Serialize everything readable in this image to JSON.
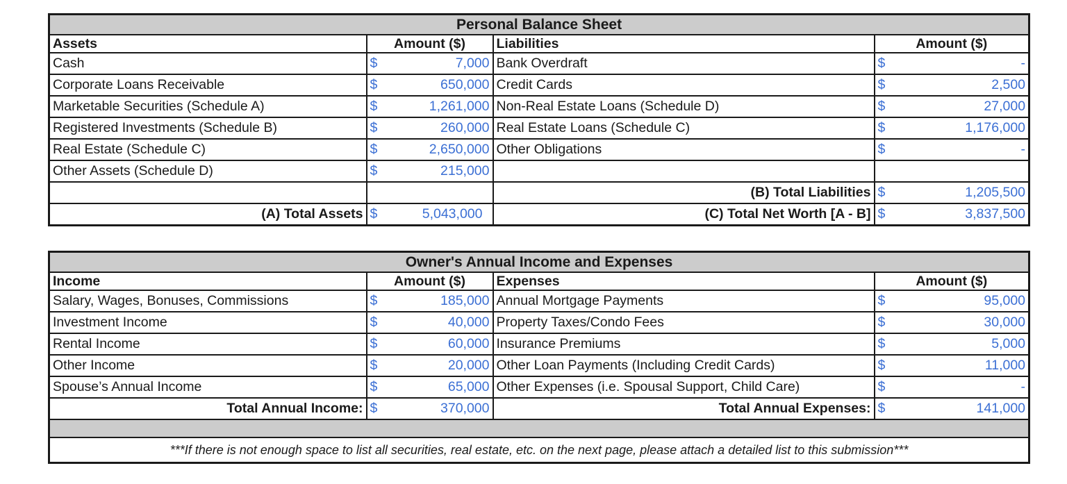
{
  "balance_sheet": {
    "title": "Personal Balance Sheet",
    "assets_header": "Assets",
    "amount_header": "Amount ($)",
    "liabilities_header": "Liabilities",
    "currency": "$",
    "rows": [
      {
        "asset": "Cash",
        "asset_amount": "7,000",
        "liability": "Bank Overdraft",
        "liability_amount": "-"
      },
      {
        "asset": "Corporate Loans Receivable",
        "asset_amount": "650,000",
        "liability": "Credit Cards",
        "liability_amount": "2,500"
      },
      {
        "asset": "Marketable Securities (Schedule A)",
        "asset_amount": "1,261,000",
        "liability": "Non-Real Estate Loans (Schedule D)",
        "liability_amount": "27,000"
      },
      {
        "asset": "Registered Investments (Schedule B)",
        "asset_amount": "260,000",
        "liability": "Real Estate Loans (Schedule C)",
        "liability_amount": "1,176,000"
      },
      {
        "asset": "Real Estate (Schedule C)",
        "asset_amount": "2,650,000",
        "liability": "Other Obligations",
        "liability_amount": "-"
      },
      {
        "asset": "Other Assets (Schedule D)",
        "asset_amount": "215,000",
        "liability": "",
        "liability_amount": ""
      }
    ],
    "total_liabilities_label": "(B) Total Liabilities",
    "total_liabilities": "1,205,500",
    "total_assets_label": "(A) Total Assets",
    "total_assets": "5,043,000",
    "net_worth_label": "(C) Total Net Worth [A - B]",
    "net_worth": "3,837,500"
  },
  "income_expenses": {
    "title": "Owner's Annual Income and Expenses",
    "income_header": "Income",
    "amount_header": "Amount ($)",
    "expenses_header": "Expenses",
    "currency": "$",
    "rows": [
      {
        "income": "Salary, Wages, Bonuses, Commissions",
        "income_amount": "185,000",
        "expense": "Annual Mortgage Payments",
        "expense_amount": "95,000"
      },
      {
        "income": "Investment Income",
        "income_amount": "40,000",
        "expense": "Property Taxes/Condo Fees",
        "expense_amount": "30,000"
      },
      {
        "income": "Rental Income",
        "income_amount": "60,000",
        "expense": "Insurance Premiums",
        "expense_amount": "5,000"
      },
      {
        "income": "Other Income",
        "income_amount": "20,000",
        "expense": "Other Loan Payments (Including Credit Cards)",
        "expense_amount": "11,000"
      },
      {
        "income": "Spouse’s Annual Income",
        "income_amount": "65,000",
        "expense": "Other Expenses (i.e. Spousal Support, Child Care)",
        "expense_amount": "-"
      }
    ],
    "total_income_label": "Total Annual Income:",
    "total_income": "370,000",
    "total_expenses_label": "Total Annual Expenses:",
    "total_expenses": "141,000",
    "note": "***If there is not enough space to list all securities, real estate, etc. on the next page, please attach a detailed list to this submission***"
  },
  "colors": {
    "amount_text": "#3b6fd4",
    "header_fill": "#cccccc"
  }
}
